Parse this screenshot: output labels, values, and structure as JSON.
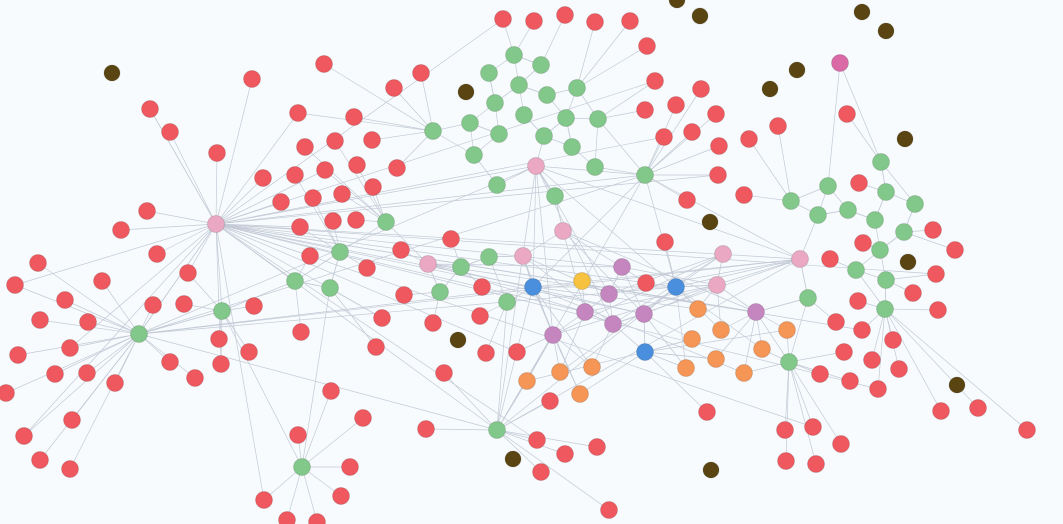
{
  "graph": {
    "type": "force-directed network",
    "colors": {
      "background": "#f7fbfd",
      "edge": "#c3cad6",
      "red": "#f0585f",
      "green": "#82c88a",
      "pink": "#eaa8c2",
      "purple": "#c586c0",
      "blue": "#4a8fdd",
      "orange": "#f59556",
      "yellow": "#f7c240",
      "dark": "#5a4512",
      "magenta": "#d96aa6"
    }
  }
}
